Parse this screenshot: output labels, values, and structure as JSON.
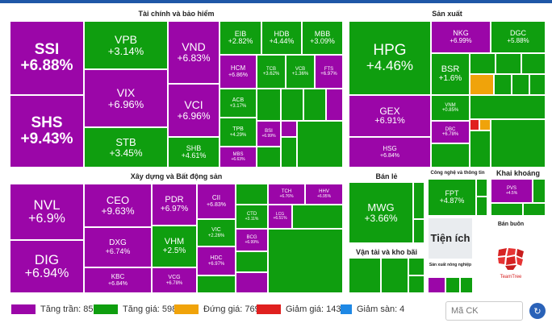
{
  "sections": {
    "finance": "Tài chính và bảo hiểm",
    "production": "Sản xuất",
    "construction": "Xây dựng và Bất động sản",
    "retail": "Bán lẻ",
    "tech": "Công nghệ và thông tin",
    "mining": "Khai khoáng",
    "utilities": "Tiện ích",
    "wholesale": "Bán buôn",
    "transport": "Vận tải và kho bãi",
    "agri": "Sản xuất nông nghiệp"
  },
  "tiles": {
    "ssi": {
      "s": "SSI",
      "p": "+6.88%"
    },
    "shs": {
      "s": "SHS",
      "p": "+9.43%"
    },
    "vpb": {
      "s": "VPB",
      "p": "+3.14%"
    },
    "vix": {
      "s": "VIX",
      "p": "+6.96%"
    },
    "stb": {
      "s": "STB",
      "p": "+3.45%"
    },
    "vnd": {
      "s": "VND",
      "p": "+6.83%"
    },
    "vci": {
      "s": "VCI",
      "p": "+6.96%"
    },
    "shb": {
      "s": "SHB",
      "p": "+4.61%"
    },
    "eib": {
      "s": "EIB",
      "p": "+2.82%"
    },
    "hdb": {
      "s": "HDB",
      "p": "+4.44%"
    },
    "mbb": {
      "s": "MBB",
      "p": "+3.09%"
    },
    "hcm": {
      "s": "HCM",
      "p": "+6.86%"
    },
    "tcb": {
      "s": "TCB",
      "p": "+3.62%"
    },
    "vcb": {
      "s": "VCB",
      "p": "+1.36%"
    },
    "fts": {
      "s": "FTS",
      "p": "+6.97%"
    },
    "acb": {
      "s": "ACB",
      "p": "+3.17%"
    },
    "tpb": {
      "s": "TPB",
      "p": "+4.29%"
    },
    "bsi": {
      "s": "BSI",
      "p": "+6.99%"
    },
    "mbs": {
      "s": "MBS",
      "p": "+6.63%"
    },
    "hpg": {
      "s": "HPG",
      "p": "+4.46%"
    },
    "nkg": {
      "s": "NKG",
      "p": "+6.99%"
    },
    "dgc": {
      "s": "DGC",
      "p": "+5.88%"
    },
    "bsr": {
      "s": "BSR",
      "p": "+1.6%"
    },
    "gex": {
      "s": "GEX",
      "p": "+6.91%"
    },
    "hsg": {
      "s": "HSG",
      "p": "+6.84%"
    },
    "vnm": {
      "s": "VNM",
      "p": "+0.85%"
    },
    "dbc": {
      "s": "DBC",
      "p": "+6.78%"
    },
    "nvl": {
      "s": "NVL",
      "p": "+6.9%"
    },
    "dig": {
      "s": "DIG",
      "p": "+6.94%"
    },
    "ceo": {
      "s": "CEO",
      "p": "+9.63%"
    },
    "dxg": {
      "s": "DXG",
      "p": "+6.74%"
    },
    "kbc": {
      "s": "KBC",
      "p": "+6.84%"
    },
    "pdr": {
      "s": "PDR",
      "p": "+6.97%"
    },
    "vhm": {
      "s": "VHM",
      "p": "+2.5%"
    },
    "vcg": {
      "s": "VCG",
      "p": "+6.78%"
    },
    "cii": {
      "s": "CII",
      "p": "+6.83%"
    },
    "vic": {
      "s": "VIC",
      "p": "+2.26%"
    },
    "hdc": {
      "s": "HDC",
      "p": "+6.97%"
    },
    "tch": {
      "s": "TCH",
      "p": "+6.76%"
    },
    "hhv": {
      "s": "HHV",
      "p": "+6.95%"
    },
    "ctd": {
      "s": "CTD",
      "p": "+3.11%"
    },
    "lcg": {
      "s": "LCG",
      "p": "+6.51%"
    },
    "bcg": {
      "s": "BCG",
      "p": "+6.99%"
    },
    "mwg": {
      "s": "MWG",
      "p": "+3.66%"
    },
    "fpt": {
      "s": "FPT",
      "p": "+4.87%"
    },
    "pvs": {
      "s": "PVS",
      "p": "+4.5%"
    }
  },
  "legend": [
    {
      "label": "Tăng trần: 85",
      "color": "#9b06a8"
    },
    {
      "label": "Tăng giá: 598",
      "color": "#0f9e0f"
    },
    {
      "label": "Đứng giá: 769",
      "color": "#f0a30a"
    },
    {
      "label": "Giảm giá: 143",
      "color": "#e0201f"
    },
    {
      "label": "Giảm sàn: 4",
      "color": "#1e88e5"
    }
  ],
  "search": {
    "placeholder": "Mã CK"
  },
  "brand": {
    "name": "TeamTree"
  }
}
